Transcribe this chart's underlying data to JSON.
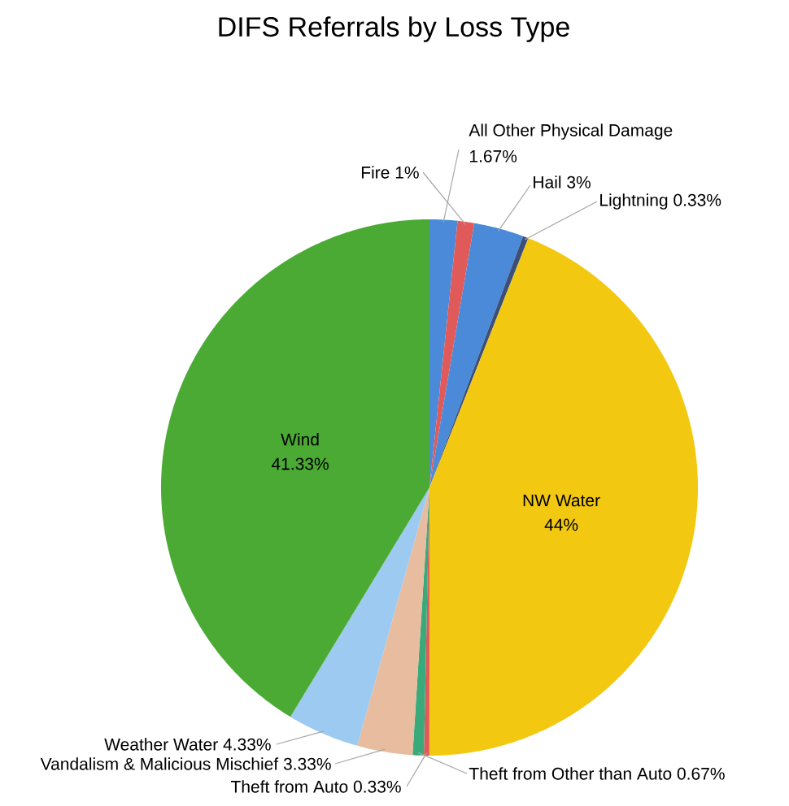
{
  "chart_data": {
    "type": "pie",
    "title": "DIFS Referrals by Loss Type",
    "categories": [
      "All Other Physical Damage",
      "Fire",
      "Hail",
      "Lightning",
      "NW Water",
      "Theft from Auto",
      "Theft from Other than Auto",
      "Vandalism & Malicious Mischief",
      "Weather Water",
      "Wind"
    ],
    "values": [
      1.67,
      1,
      3,
      0.33,
      44,
      0.33,
      0.67,
      3.33,
      4.33,
      41.33
    ],
    "value_labels": [
      "1.67%",
      "1%",
      "3%",
      "0.33%",
      "44%",
      "0.33%",
      "0.67%",
      "3.33%",
      "4.33%",
      "41.33%"
    ],
    "colors": [
      "#4a8ad8",
      "#e05a5a",
      "#4a8ad8",
      "#3c4f7a",
      "#f2c811",
      "#e05a5a",
      "#3aaa7a",
      "#e8bc9f",
      "#9ccaf0",
      "#4aaa33"
    ]
  }
}
